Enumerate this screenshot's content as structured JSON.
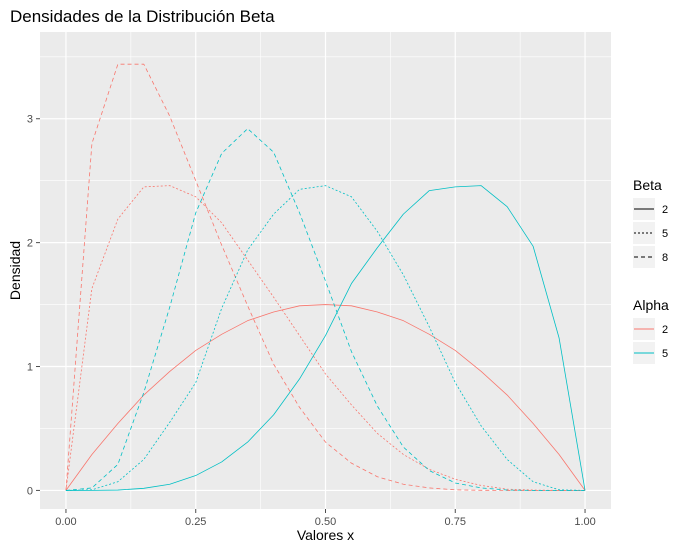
{
  "chart_data": {
    "type": "line",
    "title": "Densidades de la Distribución Beta",
    "xlabel": "Valores x",
    "ylabel": "Densidad",
    "xlim": [
      -0.05,
      1.05
    ],
    "ylim": [
      -0.15,
      3.7
    ],
    "x_ticks": [
      0,
      0.25,
      0.5,
      0.75,
      1
    ],
    "x_tick_labels": [
      "0.00",
      "0.25",
      "0.50",
      "0.75",
      "1.00"
    ],
    "y_ticks": [
      0,
      1,
      2,
      3
    ],
    "y_tick_labels": [
      "0",
      "1",
      "2",
      "3"
    ],
    "x_minor": [
      0.125,
      0.375,
      0.625,
      0.875
    ],
    "y_minor": [
      0.5,
      1.5,
      2.5,
      3.5
    ],
    "grid": true,
    "legend_placement": "right",
    "x": [
      0,
      0.05,
      0.1,
      0.15,
      0.2,
      0.25,
      0.3,
      0.35,
      0.4,
      0.45,
      0.5,
      0.55,
      0.6,
      0.65,
      0.7,
      0.75,
      0.8,
      0.85,
      0.9,
      0.95,
      1
    ],
    "series": [
      {
        "alpha": "2",
        "beta": "2",
        "color": "#F8766D",
        "dash": "solid",
        "values": [
          0,
          0.29,
          0.54,
          0.77,
          0.96,
          1.13,
          1.26,
          1.37,
          1.44,
          1.49,
          1.5,
          1.49,
          1.44,
          1.37,
          1.26,
          1.13,
          0.96,
          0.77,
          0.54,
          0.29,
          0
        ]
      },
      {
        "alpha": "2",
        "beta": "5",
        "color": "#F8766D",
        "dash": "dotted",
        "values": [
          0,
          1.63,
          2.19,
          2.45,
          2.46,
          2.37,
          2.16,
          1.86,
          1.56,
          1.25,
          0.94,
          0.69,
          0.46,
          0.29,
          0.17,
          0.09,
          0.04,
          0.01,
          0.003,
          0.0002,
          0
        ]
      },
      {
        "alpha": "2",
        "beta": "8",
        "color": "#F8766D",
        "dash": "dashed",
        "values": [
          0,
          2.8,
          3.44,
          3.44,
          3.02,
          2.5,
          1.98,
          1.49,
          1.02,
          0.67,
          0.39,
          0.22,
          0.11,
          0.05,
          0.02,
          0.005,
          0.001,
          0,
          0,
          0,
          0
        ]
      },
      {
        "alpha": "5",
        "beta": "2",
        "color": "#00BFC4",
        "dash": "solid",
        "values": [
          0,
          0.0002,
          0.003,
          0.017,
          0.05,
          0.12,
          0.23,
          0.39,
          0.61,
          0.9,
          1.25,
          1.67,
          1.96,
          2.23,
          2.42,
          2.45,
          2.46,
          2.29,
          1.97,
          1.23,
          0
        ]
      },
      {
        "alpha": "5",
        "beta": "5",
        "color": "#00BFC4",
        "dash": "dotted",
        "values": [
          0,
          0.005,
          0.07,
          0.25,
          0.55,
          0.87,
          1.47,
          1.94,
          2.23,
          2.43,
          2.46,
          2.37,
          2.09,
          1.74,
          1.32,
          0.87,
          0.52,
          0.25,
          0.07,
          0.005,
          0
        ]
      },
      {
        "alpha": "5",
        "beta": "8",
        "color": "#00BFC4",
        "dash": "dashed",
        "values": [
          0,
          0.02,
          0.21,
          0.79,
          1.48,
          2.24,
          2.72,
          2.92,
          2.73,
          2.24,
          1.69,
          1.12,
          0.68,
          0.35,
          0.16,
          0.06,
          0.02,
          0.003,
          0,
          0,
          0
        ]
      }
    ],
    "legends": [
      {
        "title": "Beta",
        "items": [
          {
            "label": "2",
            "dash": "solid"
          },
          {
            "label": "5",
            "dash": "dotted"
          },
          {
            "label": "8",
            "dash": "dashed"
          }
        ]
      },
      {
        "title": "Alpha",
        "items": [
          {
            "label": "2",
            "color": "#F8766D"
          },
          {
            "label": "5",
            "color": "#00BFC4"
          }
        ]
      }
    ],
    "colors": {
      "panel_bg": "#EBEBEB",
      "grid": "#FFFFFF",
      "legend_key_bg": "#F2F2F2",
      "tick": "#4D4D4D"
    }
  }
}
